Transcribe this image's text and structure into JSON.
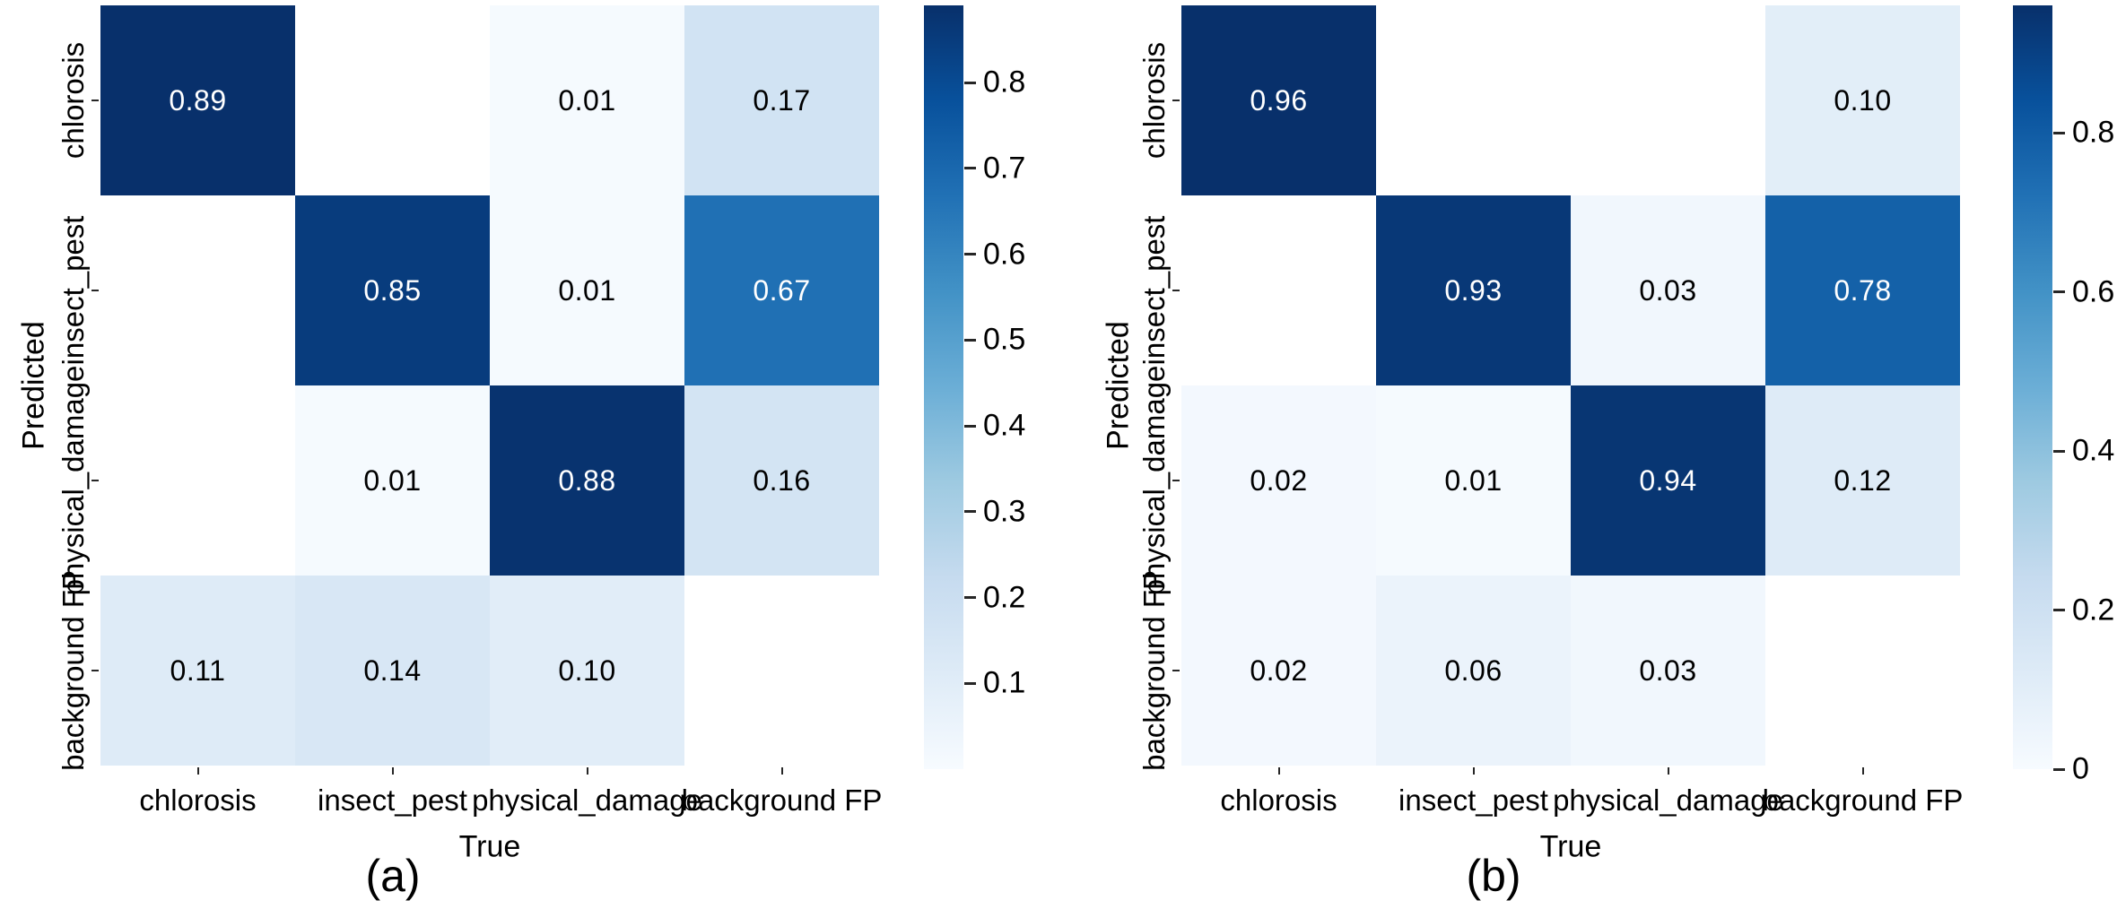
{
  "figure": {
    "background": "#ffffff",
    "colormap_name": "Blues",
    "colormap_stops": [
      "#f7fbff",
      "#deebf7",
      "#c6dbef",
      "#9ecae1",
      "#6baed6",
      "#4292c6",
      "#2171b5",
      "#08519c",
      "#08306b"
    ],
    "masked_cell_color": "#ffffff",
    "annotation_dark_text": "#000000",
    "annotation_light_text": "#ffffff",
    "tick_color": "#262626"
  },
  "chart_data": [
    {
      "type": "heatmap",
      "panel_label": "(a)",
      "xlabel": "True",
      "ylabel": "Predicted",
      "x_categories": [
        "chlorosis",
        "insect_pest",
        "physical_damage",
        "background FP"
      ],
      "y_categories": [
        "chlorosis",
        "insect_pest",
        "physical_damage",
        "background FP"
      ],
      "values": [
        [
          0.89,
          null,
          0.01,
          0.17
        ],
        [
          null,
          0.85,
          0.01,
          0.67
        ],
        [
          null,
          0.01,
          0.88,
          0.16
        ],
        [
          0.11,
          0.14,
          0.1,
          null
        ]
      ],
      "value_decimals": 2,
      "vmin": 0,
      "vmax": 0.89,
      "grid_off": true,
      "legend": "colorbar-right",
      "colorbar_tick_labels": [
        "0.8",
        "0.7",
        "0.6",
        "0.5",
        "0.4",
        "0.3",
        "0.2",
        "0.1"
      ],
      "colorbar_tick_values": [
        0.8,
        0.7,
        0.6,
        0.5,
        0.4,
        0.3,
        0.2,
        0.1
      ]
    },
    {
      "type": "heatmap",
      "panel_label": "(b)",
      "xlabel": "True",
      "ylabel": "Predicted",
      "x_categories": [
        "chlorosis",
        "insect_pest",
        "physical_damage",
        "background FP"
      ],
      "y_categories": [
        "chlorosis",
        "insect_pest",
        "physical_damage",
        "background FP"
      ],
      "values": [
        [
          0.96,
          null,
          null,
          0.1
        ],
        [
          null,
          0.93,
          0.03,
          0.78
        ],
        [
          0.02,
          0.01,
          0.94,
          0.12
        ],
        [
          0.02,
          0.06,
          0.03,
          null
        ]
      ],
      "value_decimals": 2,
      "vmin": 0,
      "vmax": 0.96,
      "grid_off": true,
      "legend": "colorbar-right",
      "colorbar_tick_labels": [
        "0.8",
        "0.6",
        "0.4",
        "0.2",
        "0"
      ],
      "colorbar_tick_values": [
        0.8,
        0.6,
        0.4,
        0.2,
        0
      ]
    }
  ]
}
